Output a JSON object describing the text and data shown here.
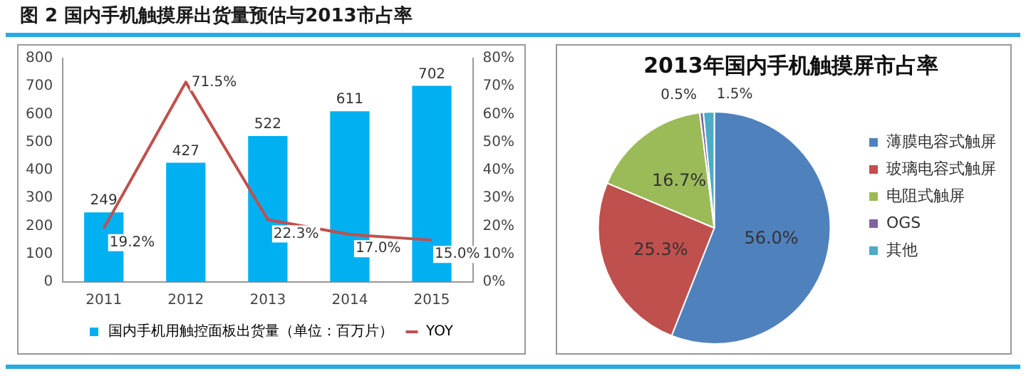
{
  "chart_data": [
    {
      "type": "bar",
      "title": "图 2 国内手机触摸屏出货量预估与2013市占率",
      "categories": [
        "2011",
        "2012",
        "2013",
        "2014",
        "2015"
      ],
      "series": [
        {
          "name": "国内手机用触控面板出货量（单位：百万片）",
          "color": "#00b0f0",
          "values": [
            249,
            427,
            522,
            611,
            702
          ],
          "value_labels": [
            "249",
            "427",
            "522",
            "611",
            "702"
          ]
        },
        {
          "name": "YOY",
          "type": "line",
          "axis": "y2",
          "color": "#c0504d",
          "values": [
            19.2,
            71.5,
            22.3,
            17.0,
            15.0
          ],
          "value_labels": [
            "19.2%",
            "71.5%",
            "22.3%",
            "17.0%",
            "15.0%"
          ],
          "marker": "none",
          "line_style": "solid"
        }
      ],
      "ylim": [
        0,
        800
      ],
      "yticks": [
        0,
        100,
        200,
        300,
        400,
        500,
        600,
        700,
        800
      ],
      "y2lim": [
        0,
        80
      ],
      "y2ticks": [
        {
          "value": 0,
          "label": "0%"
        },
        {
          "value": 10,
          "label": "10%"
        },
        {
          "value": 20,
          "label": "20%"
        },
        {
          "value": 30,
          "label": "30%"
        },
        {
          "value": 40,
          "label": "40%"
        },
        {
          "value": 50,
          "label": "50%"
        },
        {
          "value": 60,
          "label": "60%"
        },
        {
          "value": 70,
          "label": "70%"
        },
        {
          "value": 80,
          "label": "80%"
        }
      ],
      "grid": false,
      "legend": "bottom"
    },
    {
      "type": "pie",
      "title": "2013年国内手机触摸屏市占率",
      "categories": [
        "薄膜电容式触屏",
        "玻璃电容式触屏",
        "电阻式触屏",
        "OGS",
        "其他"
      ],
      "values": [
        56.0,
        25.3,
        16.7,
        0.5,
        1.5
      ],
      "value_labels": [
        "56.0%",
        "25.3%",
        "16.7%",
        "0.5%",
        "1.5%"
      ],
      "colors": [
        "#4f81bd",
        "#c0504d",
        "#9bbb59",
        "#8064a2",
        "#4bacc6"
      ],
      "legend": "right"
    }
  ]
}
